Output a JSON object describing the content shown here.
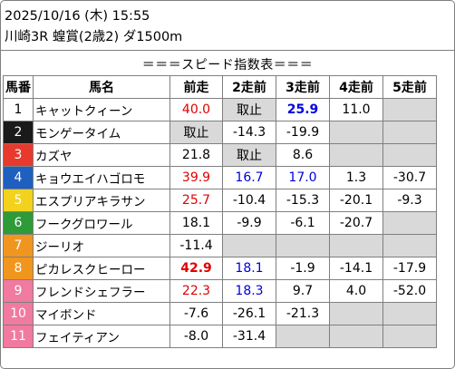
{
  "header": {
    "datetime": "2025/10/16 (木) 15:55",
    "race": "川崎3R 蝗賞(2歳2) ダ1500m"
  },
  "banner": "＝＝＝スピード指数表＝＝＝",
  "columns": [
    "馬番",
    "馬名",
    "前走",
    "2走前",
    "3走前",
    "4走前",
    "5走前"
  ],
  "colors": {
    "1": {
      "bg": "#ffffff",
      "fg": "#000000"
    },
    "2": {
      "bg": "#1a1a1a",
      "fg": "#ffffff"
    },
    "3": {
      "bg": "#e8392e",
      "fg": "#ffffff"
    },
    "4": {
      "bg": "#1e5fbf",
      "fg": "#ffffff"
    },
    "5": {
      "bg": "#f2d21c",
      "fg": "#ffffff"
    },
    "6": {
      "bg": "#2f9a38",
      "fg": "#ffffff"
    },
    "7": {
      "bg": "#f0961f",
      "fg": "#ffffff"
    },
    "8": {
      "bg": "#f0961f",
      "fg": "#ffffff"
    },
    "9": {
      "bg": "#f07aa0",
      "fg": "#ffffff"
    },
    "10": {
      "bg": "#f07aa0",
      "fg": "#ffffff"
    },
    "11": {
      "bg": "#f07aa0",
      "fg": "#ffffff"
    }
  },
  "rows": [
    {
      "no": "1",
      "name": "キャットクィーン",
      "cells": [
        {
          "v": "40.0",
          "c": "red"
        },
        {
          "v": "取止",
          "g": true
        },
        {
          "v": "25.9",
          "c": "blue",
          "b": true
        },
        {
          "v": "11.0"
        },
        {
          "v": "",
          "g": true
        }
      ]
    },
    {
      "no": "2",
      "name": "モンゲータイム",
      "cells": [
        {
          "v": "取止",
          "g": true
        },
        {
          "v": "-14.3"
        },
        {
          "v": "-19.9"
        },
        {
          "v": "",
          "g": true
        },
        {
          "v": "",
          "g": true
        }
      ]
    },
    {
      "no": "3",
      "name": "カズヤ",
      "cells": [
        {
          "v": "21.8"
        },
        {
          "v": "取止",
          "g": true
        },
        {
          "v": "8.6"
        },
        {
          "v": "",
          "g": true
        },
        {
          "v": "",
          "g": true
        }
      ]
    },
    {
      "no": "4",
      "name": "キョウエイハゴロモ",
      "cells": [
        {
          "v": "39.9",
          "c": "red"
        },
        {
          "v": "16.7",
          "c": "blue"
        },
        {
          "v": "17.0",
          "c": "blue"
        },
        {
          "v": "1.3"
        },
        {
          "v": "-30.7"
        }
      ]
    },
    {
      "no": "5",
      "name": "エスプリアキラサン",
      "cells": [
        {
          "v": "25.7",
          "c": "red"
        },
        {
          "v": "-10.4"
        },
        {
          "v": "-15.3"
        },
        {
          "v": "-20.1"
        },
        {
          "v": "-9.3"
        }
      ]
    },
    {
      "no": "6",
      "name": "フークグロワール",
      "cells": [
        {
          "v": "18.1"
        },
        {
          "v": "-9.9"
        },
        {
          "v": "-6.1"
        },
        {
          "v": "-20.7"
        },
        {
          "v": "",
          "g": true
        }
      ]
    },
    {
      "no": "7",
      "name": "ジーリオ",
      "cells": [
        {
          "v": "-11.4"
        },
        {
          "v": "",
          "g": true
        },
        {
          "v": "",
          "g": true
        },
        {
          "v": "",
          "g": true
        },
        {
          "v": "",
          "g": true
        }
      ]
    },
    {
      "no": "8",
      "name": "ピカレスクヒーロー",
      "cells": [
        {
          "v": "42.9",
          "c": "red",
          "b": true
        },
        {
          "v": "18.1",
          "c": "blue"
        },
        {
          "v": "-1.9"
        },
        {
          "v": "-14.1"
        },
        {
          "v": "-17.9"
        }
      ]
    },
    {
      "no": "9",
      "name": "フレンドシェフラー",
      "cells": [
        {
          "v": "22.3",
          "c": "red"
        },
        {
          "v": "18.3",
          "c": "blue"
        },
        {
          "v": "9.7"
        },
        {
          "v": "4.0"
        },
        {
          "v": "-52.0"
        }
      ]
    },
    {
      "no": "10",
      "name": "マイボンド",
      "cells": [
        {
          "v": "-7.6"
        },
        {
          "v": "-26.1"
        },
        {
          "v": "-21.3"
        },
        {
          "v": "",
          "g": true
        },
        {
          "v": "",
          "g": true
        }
      ]
    },
    {
      "no": "11",
      "name": "フェイティアン",
      "cells": [
        {
          "v": "-8.0"
        },
        {
          "v": "-31.4"
        },
        {
          "v": "",
          "g": true
        },
        {
          "v": "",
          "g": true
        },
        {
          "v": "",
          "g": true
        }
      ]
    }
  ]
}
